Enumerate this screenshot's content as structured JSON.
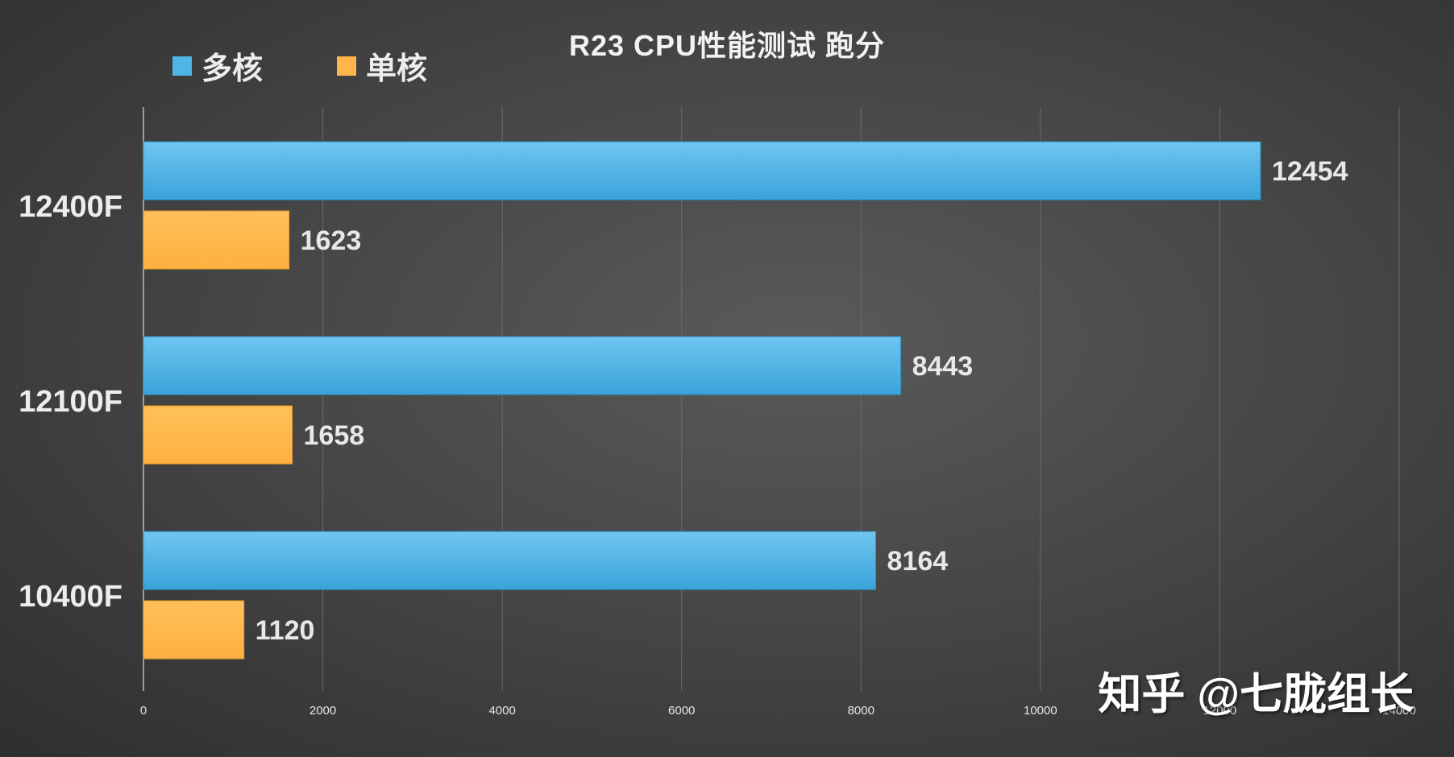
{
  "chart_data": {
    "type": "bar",
    "orientation": "horizontal",
    "title": "R23 CPU性能测试 跑分",
    "categories": [
      "12400F",
      "12100F",
      "10400F"
    ],
    "series": [
      {
        "name": "多核",
        "values": [
          12454,
          8443,
          8164
        ],
        "color": "#4fb4e6"
      },
      {
        "name": "单核",
        "values": [
          1623,
          1658,
          1120
        ],
        "color": "#ffb54c"
      }
    ],
    "xlim": [
      0,
      14000
    ],
    "x_ticks": [
      0,
      2000,
      4000,
      6000,
      8000,
      10000,
      12000,
      14000
    ],
    "x_tick_labels": [
      "0",
      "2000",
      "4000",
      "6000",
      "8000",
      "10000",
      "12000",
      "14000"
    ],
    "grid": true,
    "legend_position": "top-left"
  },
  "watermark": "知乎 @七胧组长",
  "colors": {
    "background": "#454545",
    "text": "#e8e8e8",
    "grid": "#6a6a6a"
  }
}
